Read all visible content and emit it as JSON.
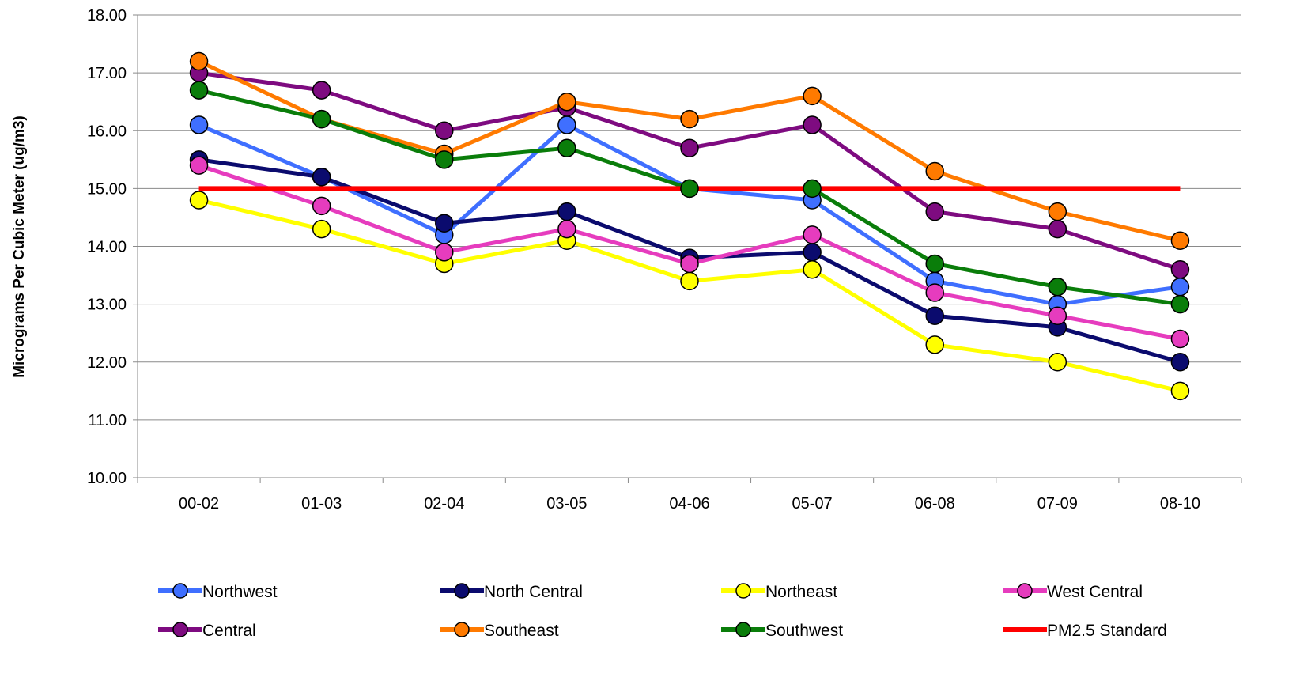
{
  "chart_data": {
    "type": "line",
    "title": "",
    "xlabel": "",
    "ylabel": "Micrograms Per Cubic Meter (ug/m3)",
    "categories": [
      "00-02",
      "01-03",
      "02-04",
      "03-05",
      "04-06",
      "05-07",
      "06-08",
      "07-09",
      "08-10"
    ],
    "ylim": [
      10,
      18
    ],
    "yticks": [
      "10.00",
      "11.00",
      "12.00",
      "13.00",
      "14.00",
      "15.00",
      "16.00",
      "17.00",
      "18.00"
    ],
    "grid": "horizontal",
    "legend_position": "bottom",
    "series": [
      {
        "name": "Northwest",
        "color": "#3F6FFF",
        "marker": true,
        "values": [
          16.1,
          15.2,
          14.2,
          16.1,
          15.0,
          14.8,
          13.4,
          13.0,
          13.3
        ]
      },
      {
        "name": "North Central",
        "color": "#0B0B6E",
        "marker": true,
        "values": [
          15.5,
          15.2,
          14.4,
          14.6,
          13.8,
          13.9,
          12.8,
          12.6,
          12.0
        ]
      },
      {
        "name": "Northeast",
        "color": "#FFFF00",
        "marker": true,
        "values": [
          14.8,
          14.3,
          13.7,
          14.1,
          13.4,
          13.6,
          12.3,
          12.0,
          11.5
        ]
      },
      {
        "name": "West Central",
        "color": "#E63CBE",
        "marker": true,
        "values": [
          15.4,
          14.7,
          13.9,
          14.3,
          13.7,
          14.2,
          13.2,
          12.8,
          12.4
        ]
      },
      {
        "name": "Central",
        "color": "#7E0B80",
        "marker": true,
        "values": [
          17.0,
          16.7,
          16.0,
          16.4,
          15.7,
          16.1,
          14.6,
          14.3,
          13.6
        ]
      },
      {
        "name": "Southeast",
        "color": "#FF7A00",
        "marker": true,
        "values": [
          17.2,
          16.2,
          15.6,
          16.5,
          16.2,
          16.6,
          15.3,
          14.6,
          14.1
        ]
      },
      {
        "name": "Southwest",
        "color": "#0A7D0A",
        "marker": true,
        "values": [
          16.7,
          16.2,
          15.5,
          15.7,
          15.0,
          15.0,
          13.7,
          13.3,
          13.0
        ]
      },
      {
        "name": "PM2.5 Standard",
        "color": "#FF0000",
        "marker": false,
        "values": [
          15.0,
          15.0,
          15.0,
          15.0,
          15.0,
          15.0,
          15.0,
          15.0,
          15.0
        ]
      }
    ]
  }
}
